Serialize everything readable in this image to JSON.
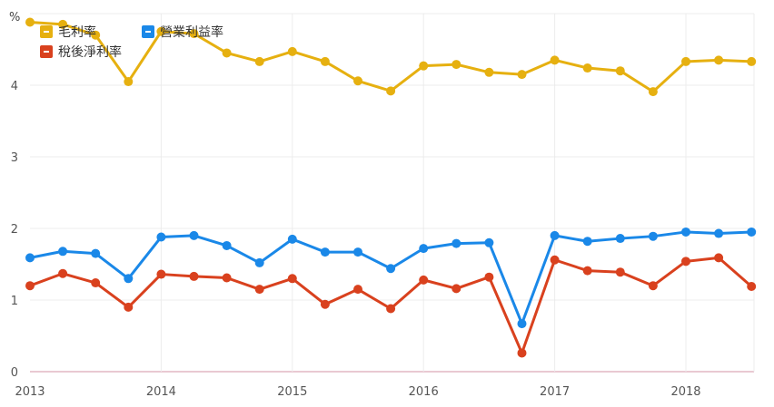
{
  "chart_data": {
    "type": "line",
    "unit_label": "%",
    "x": [
      "2013Q1",
      "2013Q2",
      "2013Q3",
      "2013Q4",
      "2014Q1",
      "2014Q2",
      "2014Q3",
      "2014Q4",
      "2015Q1",
      "2015Q2",
      "2015Q3",
      "2015Q4",
      "2016Q1",
      "2016Q2",
      "2016Q3",
      "2016Q4",
      "2017Q1",
      "2017Q2",
      "2017Q3",
      "2017Q4",
      "2018Q1",
      "2018Q2",
      "2018Q3"
    ],
    "x_tick_labels": [
      "2013",
      "2014",
      "2015",
      "2016",
      "2017",
      "2018"
    ],
    "y_ticks": [
      0,
      1,
      2,
      3,
      4
    ],
    "ylim": [
      0,
      5
    ],
    "grid": true,
    "legend_position": "top-left",
    "series": [
      {
        "name": "毛利率",
        "color": "#e6b010",
        "values": [
          4.88,
          4.85,
          4.7,
          4.05,
          4.75,
          4.72,
          4.45,
          4.33,
          4.47,
          4.33,
          4.06,
          3.92,
          4.27,
          4.29,
          4.18,
          4.15,
          4.35,
          4.24,
          4.2,
          3.91,
          4.33,
          4.35,
          4.33
        ]
      },
      {
        "name": "營業利益率",
        "color": "#1a88e8",
        "values": [
          1.59,
          1.68,
          1.65,
          1.3,
          1.88,
          1.9,
          1.76,
          1.52,
          1.85,
          1.67,
          1.67,
          1.44,
          1.72,
          1.79,
          1.8,
          0.67,
          1.9,
          1.82,
          1.86,
          1.89,
          1.95,
          1.93,
          1.95
        ]
      },
      {
        "name": "稅後淨利率",
        "color": "#d9411e",
        "values": [
          1.2,
          1.37,
          1.24,
          0.9,
          1.36,
          1.33,
          1.31,
          1.15,
          1.3,
          0.94,
          1.15,
          0.88,
          1.28,
          1.16,
          1.32,
          0.26,
          1.56,
          1.41,
          1.39,
          1.2,
          1.54,
          1.59,
          1.19
        ]
      }
    ]
  }
}
